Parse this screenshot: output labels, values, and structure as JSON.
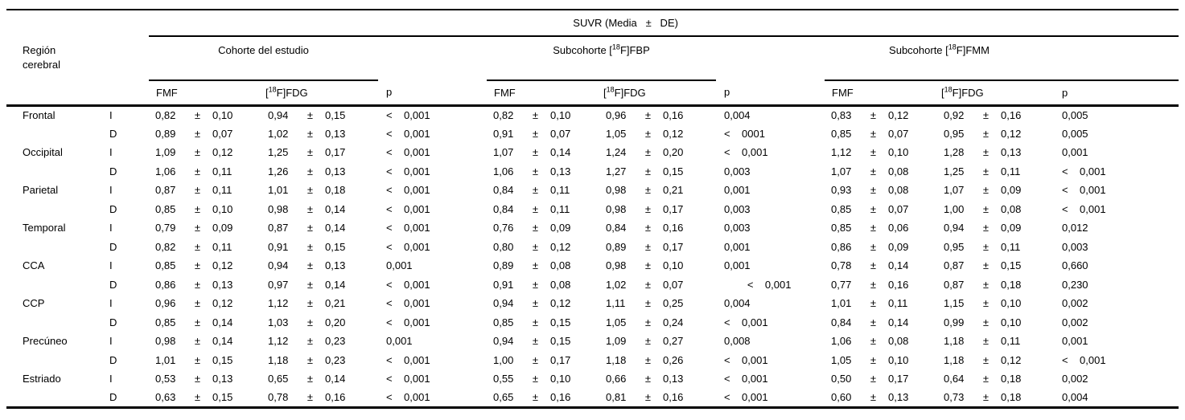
{
  "header": {
    "title": "SUVR (Media   ±   DE)",
    "region_column": {
      "line1": "Región",
      "line2": "cerebral"
    },
    "groups": [
      {
        "prefix": "Cohorte del estudio",
        "sup": "",
        "suffix": ""
      },
      {
        "prefix": "Subcohorte [",
        "sup": "18",
        "suffix": "F]FBP"
      },
      {
        "prefix": "Subcohorte [",
        "sup": "18",
        "suffix": "F]FMM"
      }
    ],
    "subcols": {
      "fmf": "FMF",
      "fdg_prefix": "[",
      "fdg_sup": "18",
      "fdg_suffix": "F]FDG",
      "p": "p"
    }
  },
  "symbols": {
    "plus_minus": "±"
  },
  "rows": [
    {
      "region": "Frontal",
      "side": "I",
      "groups": [
        {
          "mean1": "0,82",
          "sd1": "0,10",
          "mean2": "0,94",
          "sd2": "0,15",
          "p": "<    0,001"
        },
        {
          "mean1": "0,82",
          "sd1": "0,10",
          "mean2": "0,96",
          "sd2": "0,16",
          "p": "0,004"
        },
        {
          "mean1": "0,83",
          "sd1": "0,12",
          "mean2": "0,92",
          "sd2": "0,16",
          "p": "0,005"
        }
      ]
    },
    {
      "region": "",
      "side": "D",
      "groups": [
        {
          "mean1": "0,89",
          "sd1": "0,07",
          "mean2": "1,02",
          "sd2": "0,13",
          "p": "<    0,001"
        },
        {
          "mean1": "0,91",
          "sd1": "0,07",
          "mean2": "1,05",
          "sd2": "0,12",
          "p": "<    0001"
        },
        {
          "mean1": "0,85",
          "sd1": "0,07",
          "mean2": "0,95",
          "sd2": "0,12",
          "p": "0,005"
        }
      ]
    },
    {
      "region": "Occipital",
      "side": "I",
      "groups": [
        {
          "mean1": "1,09",
          "sd1": "0,12",
          "mean2": "1,25",
          "sd2": "0,17",
          "p": "<    0,001"
        },
        {
          "mean1": "1,07",
          "sd1": "0,14",
          "mean2": "1,24",
          "sd2": "0,20",
          "p": "<    0,001"
        },
        {
          "mean1": "1,12",
          "sd1": "0,10",
          "mean2": "1,28",
          "sd2": "0,13",
          "p": "0,001"
        }
      ]
    },
    {
      "region": "",
      "side": "D",
      "groups": [
        {
          "mean1": "1,06",
          "sd1": "0,11",
          "mean2": "1,26",
          "sd2": "0,13",
          "p": "<    0,001"
        },
        {
          "mean1": "1,06",
          "sd1": "0,13",
          "mean2": "1,27",
          "sd2": "0,15",
          "p": "0,003"
        },
        {
          "mean1": "1,07",
          "sd1": "0,08",
          "mean2": "1,25",
          "sd2": "0,11",
          "p": "<    0,001"
        }
      ]
    },
    {
      "region": "Parietal",
      "side": "I",
      "groups": [
        {
          "mean1": "0,87",
          "sd1": "0,11",
          "mean2": "1,01",
          "sd2": "0,18",
          "p": "<    0,001"
        },
        {
          "mean1": "0,84",
          "sd1": "0,11",
          "mean2": "0,98",
          "sd2": "0,21",
          "p": "0,001"
        },
        {
          "mean1": "0,93",
          "sd1": "0,08",
          "mean2": "1,07",
          "sd2": "0,09",
          "p": "<    0,001"
        }
      ]
    },
    {
      "region": "",
      "side": "D",
      "groups": [
        {
          "mean1": "0,85",
          "sd1": "0,10",
          "mean2": "0,98",
          "sd2": "0,14",
          "p": "<    0,001"
        },
        {
          "mean1": "0,84",
          "sd1": "0,11",
          "mean2": "0,98",
          "sd2": "0,17",
          "p": "0,003"
        },
        {
          "mean1": "0,85",
          "sd1": "0,07",
          "mean2": "1,00",
          "sd2": "0,08",
          "p": "<    0,001"
        }
      ]
    },
    {
      "region": "Temporal",
      "side": "I",
      "groups": [
        {
          "mean1": "0,79",
          "sd1": "0,09",
          "mean2": "0,87",
          "sd2": "0,14",
          "p": "<    0,001"
        },
        {
          "mean1": "0,76",
          "sd1": "0,09",
          "mean2": "0,84",
          "sd2": "0,16",
          "p": "0,003"
        },
        {
          "mean1": "0,85",
          "sd1": "0,06",
          "mean2": "0,94",
          "sd2": "0,09",
          "p": "0,012"
        }
      ]
    },
    {
      "region": "",
      "side": "D",
      "groups": [
        {
          "mean1": "0,82",
          "sd1": "0,11",
          "mean2": "0,91",
          "sd2": "0,15",
          "p": "<    0,001"
        },
        {
          "mean1": "0,80",
          "sd1": "0,12",
          "mean2": "0,89",
          "sd2": "0,17",
          "p": "0,001"
        },
        {
          "mean1": "0,86",
          "sd1": "0,09",
          "mean2": "0,95",
          "sd2": "0,11",
          "p": "0,003"
        }
      ]
    },
    {
      "region": "CCA",
      "side": "I",
      "groups": [
        {
          "mean1": "0,85",
          "sd1": "0,12",
          "mean2": "0,94",
          "sd2": "0,13",
          "p": "0,001"
        },
        {
          "mean1": "0,89",
          "sd1": "0,08",
          "mean2": "0,98",
          "sd2": "0,10",
          "p": "0,001"
        },
        {
          "mean1": "0,78",
          "sd1": "0,14",
          "mean2": "0,87",
          "sd2": "0,15",
          "p": "0,660"
        }
      ]
    },
    {
      "region": "",
      "side": "D",
      "groups": [
        {
          "mean1": "0,86",
          "sd1": "0,13",
          "mean2": "0,97",
          "sd2": "0,14",
          "p": "<    0,001"
        },
        {
          "mean1": "0,91",
          "sd1": "0,08",
          "mean2": "1,02",
          "sd2": "0,07",
          "p": "        <    0,001"
        },
        {
          "mean1": "0,77",
          "sd1": "0,16",
          "mean2": "0,87",
          "sd2": "0,18",
          "p": "0,230"
        }
      ]
    },
    {
      "region": "CCP",
      "side": "I",
      "groups": [
        {
          "mean1": "0,96",
          "sd1": "0,12",
          "mean2": "1,12",
          "sd2": "0,21",
          "p": "<    0,001"
        },
        {
          "mean1": "0,94",
          "sd1": "0,12",
          "mean2": "1,11",
          "sd2": "0,25",
          "p": "0,004"
        },
        {
          "mean1": "1,01",
          "sd1": "0,11",
          "mean2": "1,15",
          "sd2": "0,10",
          "p": "0,002"
        }
      ]
    },
    {
      "region": "",
      "side": "D",
      "groups": [
        {
          "mean1": "0,85",
          "sd1": "0,14",
          "mean2": "1,03",
          "sd2": "0,20",
          "p": "<    0,001"
        },
        {
          "mean1": "0,85",
          "sd1": "0,15",
          "mean2": "1,05",
          "sd2": "0,24",
          "p": "<    0,001"
        },
        {
          "mean1": "0,84",
          "sd1": "0,14",
          "mean2": "0,99",
          "sd2": "0,10",
          "p": "0,002"
        }
      ]
    },
    {
      "region": "Precúneo",
      "side": "I",
      "groups": [
        {
          "mean1": "0,98",
          "sd1": "0,14",
          "mean2": "1,12",
          "sd2": "0,23",
          "p": "0,001"
        },
        {
          "mean1": "0,94",
          "sd1": "0,15",
          "mean2": "1,09",
          "sd2": "0,27",
          "p": "0,008"
        },
        {
          "mean1": "1,06",
          "sd1": "0,08",
          "mean2": "1,18",
          "sd2": "0,11",
          "p": "0,001"
        }
      ]
    },
    {
      "region": "",
      "side": "D",
      "groups": [
        {
          "mean1": "1,01",
          "sd1": "0,15",
          "mean2": "1,18",
          "sd2": "0,23",
          "p": "<    0,001"
        },
        {
          "mean1": "1,00",
          "sd1": "0,17",
          "mean2": "1,18",
          "sd2": "0,26",
          "p": "<    0,001"
        },
        {
          "mean1": "1,05",
          "sd1": "0,10",
          "mean2": "1,18",
          "sd2": "0,12",
          "p": "<    0,001"
        }
      ]
    },
    {
      "region": "Estriado",
      "side": "I",
      "groups": [
        {
          "mean1": "0,53",
          "sd1": "0,13",
          "mean2": "0,65",
          "sd2": "0,14",
          "p": "<    0,001"
        },
        {
          "mean1": "0,55",
          "sd1": "0,10",
          "mean2": "0,66",
          "sd2": "0,13",
          "p": "<    0,001"
        },
        {
          "mean1": "0,50",
          "sd1": "0,17",
          "mean2": "0,64",
          "sd2": "0,18",
          "p": "0,002"
        }
      ]
    },
    {
      "region": "",
      "side": "D",
      "groups": [
        {
          "mean1": "0,63",
          "sd1": "0,15",
          "mean2": "0,78",
          "sd2": "0,16",
          "p": "<    0,001"
        },
        {
          "mean1": "0,65",
          "sd1": "0,16",
          "mean2": "0,81",
          "sd2": "0,16",
          "p": "<    0,001"
        },
        {
          "mean1": "0,60",
          "sd1": "0,13",
          "mean2": "0,73",
          "sd2": "0,18",
          "p": "0,004"
        }
      ]
    }
  ]
}
